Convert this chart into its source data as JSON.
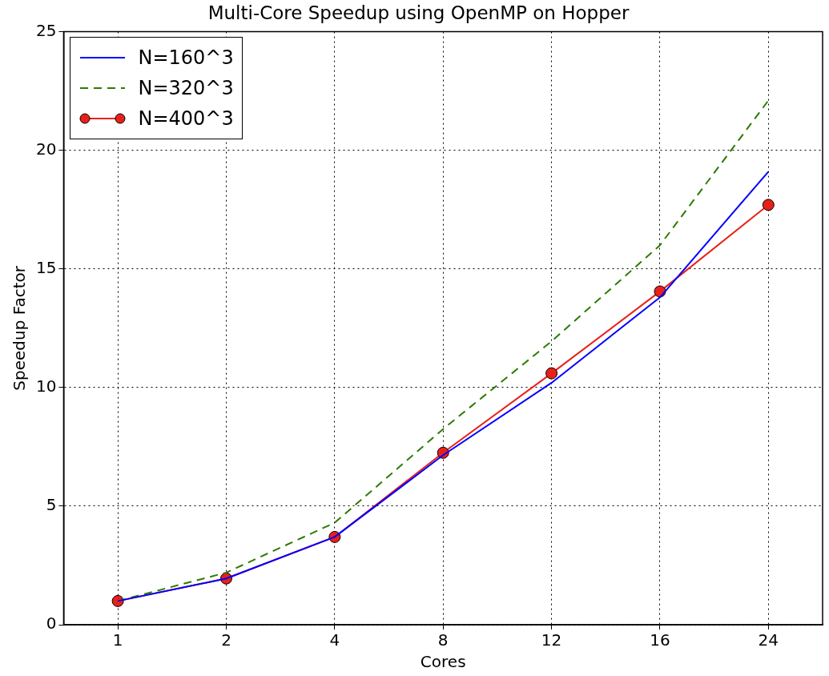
{
  "chart_data": {
    "type": "line",
    "title": "Multi-Core Speedup using OpenMP on Hopper",
    "xlabel": "Cores",
    "ylabel": "Speedup Factor",
    "categories": [
      "1",
      "2",
      "4",
      "8",
      "12",
      "16",
      "24"
    ],
    "series": [
      {
        "name": "N=160^3",
        "color": "#0000ff",
        "marker": "none",
        "line_style": "solid",
        "values": [
          1.0,
          1.95,
          3.7,
          7.15,
          10.2,
          13.8,
          19.1
        ]
      },
      {
        "name": "N=320^3",
        "color": "#2c7a00",
        "marker": "none",
        "line_style": "dashed",
        "values": [
          1.0,
          2.2,
          4.3,
          8.25,
          11.95,
          16.0,
          22.1
        ]
      },
      {
        "name": "N=400^3",
        "color": "#e8201a",
        "marker": "circle",
        "line_style": "solid",
        "values": [
          1.0,
          1.95,
          3.7,
          7.25,
          10.6,
          14.05,
          17.7
        ]
      }
    ],
    "ylim": [
      0,
      25
    ],
    "yticks": [
      0,
      5,
      10,
      15,
      20,
      25
    ],
    "grid": true,
    "legend": "top left"
  }
}
